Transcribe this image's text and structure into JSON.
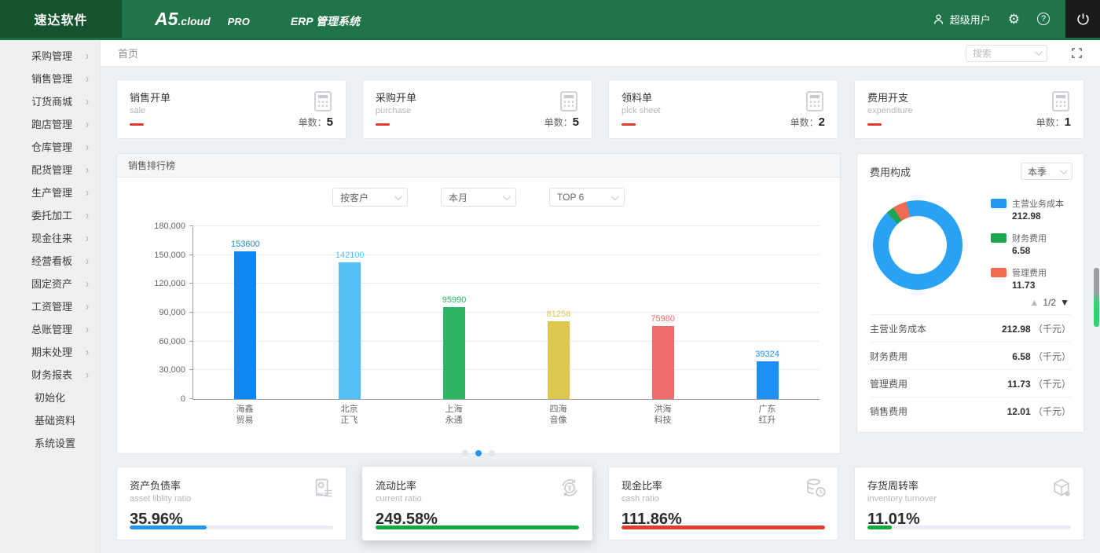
{
  "header": {
    "logo": "速达软件",
    "brand_main": "A5",
    "brand_suffix": ".cloud",
    "brand_badge": "PRO",
    "brand_title": "ERP 管理系统",
    "user_label": "超级用户"
  },
  "sidebar": {
    "items": [
      {
        "label": "采购管理",
        "expandable": true
      },
      {
        "label": "销售管理",
        "expandable": true
      },
      {
        "label": "订货商城",
        "expandable": true
      },
      {
        "label": "跑店管理",
        "expandable": true
      },
      {
        "label": "仓库管理",
        "expandable": true
      },
      {
        "label": "配货管理",
        "expandable": true
      },
      {
        "label": "生产管理",
        "expandable": true
      },
      {
        "label": "委托加工",
        "expandable": true
      },
      {
        "label": "现金往来",
        "expandable": true
      },
      {
        "label": "经营看板",
        "expandable": true
      },
      {
        "label": "固定资产",
        "expandable": true
      },
      {
        "label": "工资管理",
        "expandable": true
      },
      {
        "label": "总账管理",
        "expandable": true
      },
      {
        "label": "期末处理",
        "expandable": true
      },
      {
        "label": "财务报表",
        "expandable": true
      },
      {
        "label": "初始化",
        "expandable": false
      },
      {
        "label": "基础资料",
        "expandable": false
      },
      {
        "label": "系统设置",
        "expandable": false
      }
    ]
  },
  "topbar": {
    "breadcrumb": "首页",
    "search_placeholder": "搜索"
  },
  "stat_cards": [
    {
      "title": "销售开单",
      "subtitle": "sale",
      "count_label": "单数：",
      "count": "5"
    },
    {
      "title": "采购开单",
      "subtitle": "purchase",
      "count_label": "单数：",
      "count": "5"
    },
    {
      "title": "领料单",
      "subtitle": "pick sheet",
      "count_label": "单数：",
      "count": "2"
    },
    {
      "title": "费用开支",
      "subtitle": "expenditure",
      "count_label": "单数：",
      "count": "1"
    }
  ],
  "chart_data": [
    {
      "type": "bar",
      "title": "销售排行榜",
      "filters": [
        "按客户",
        "本月",
        "TOP 6"
      ],
      "categories": [
        "海鑫\n贸易",
        "北京\n正飞",
        "上海\n永通",
        "四海\n音像",
        "洪海\n科技",
        "广东\n红升"
      ],
      "values": [
        153600,
        142100,
        95990,
        81258,
        75980,
        39324
      ],
      "colors": [
        "#0d87f2",
        "#54c0f8",
        "#2db564",
        "#ddc750",
        "#ee6e6e",
        "#1e90f5"
      ],
      "xlabel": "",
      "ylabel": "",
      "ylim": [
        0,
        180000
      ],
      "yticks": [
        0,
        30000,
        60000,
        90000,
        120000,
        150000,
        180000
      ],
      "grid": true,
      "carousel": {
        "dots": 3,
        "active_index": 1
      }
    },
    {
      "type": "pie",
      "title": "费用构成",
      "period": "本季",
      "labels": [
        "主营业务成本",
        "财务费用",
        "管理费用"
      ],
      "values": [
        212.98,
        6.58,
        11.73
      ],
      "colors": [
        "#2aa2f3",
        "#1ea550",
        "#ef6b52"
      ],
      "legend_position": "right",
      "pagination": "1/2"
    }
  ],
  "expense_panel": {
    "title": "费用构成",
    "period": "本季",
    "legend": [
      {
        "label": "主营业务成本",
        "value": "212.98",
        "color": "#2196f3"
      },
      {
        "label": "财务费用",
        "value": "6.58",
        "color": "#1ea550"
      },
      {
        "label": "管理费用",
        "value": "11.73",
        "color": "#ef6b52"
      }
    ],
    "pagination": "1/2",
    "rows": [
      {
        "label": "主营业务成本",
        "value": "212.98",
        "unit": "（千元）"
      },
      {
        "label": "财务费用",
        "value": "6.58",
        "unit": "（千元）"
      },
      {
        "label": "管理费用",
        "value": "11.73",
        "unit": "（千元）"
      },
      {
        "label": "销售费用",
        "value": "12.01",
        "unit": "（千元）"
      }
    ]
  },
  "ratio_cards": [
    {
      "title": "资产负债率",
      "subtitle": "asset liblity ratio",
      "value": "35.96%",
      "color": "#2196f3",
      "progress": 38,
      "elevated": false
    },
    {
      "title": "流动比率",
      "subtitle": "current ratio",
      "value": "249.58%",
      "color": "#0fa93f",
      "progress": 100,
      "elevated": true
    },
    {
      "title": "现金比率",
      "subtitle": "cash ratio",
      "value": "111.86%",
      "color": "#e23c2e",
      "progress": 100,
      "elevated": false
    },
    {
      "title": "存货周转率",
      "subtitle": "inventory turnover",
      "value": "11.01%",
      "color": "#0fa93f",
      "progress": 12,
      "elevated": false
    }
  ]
}
